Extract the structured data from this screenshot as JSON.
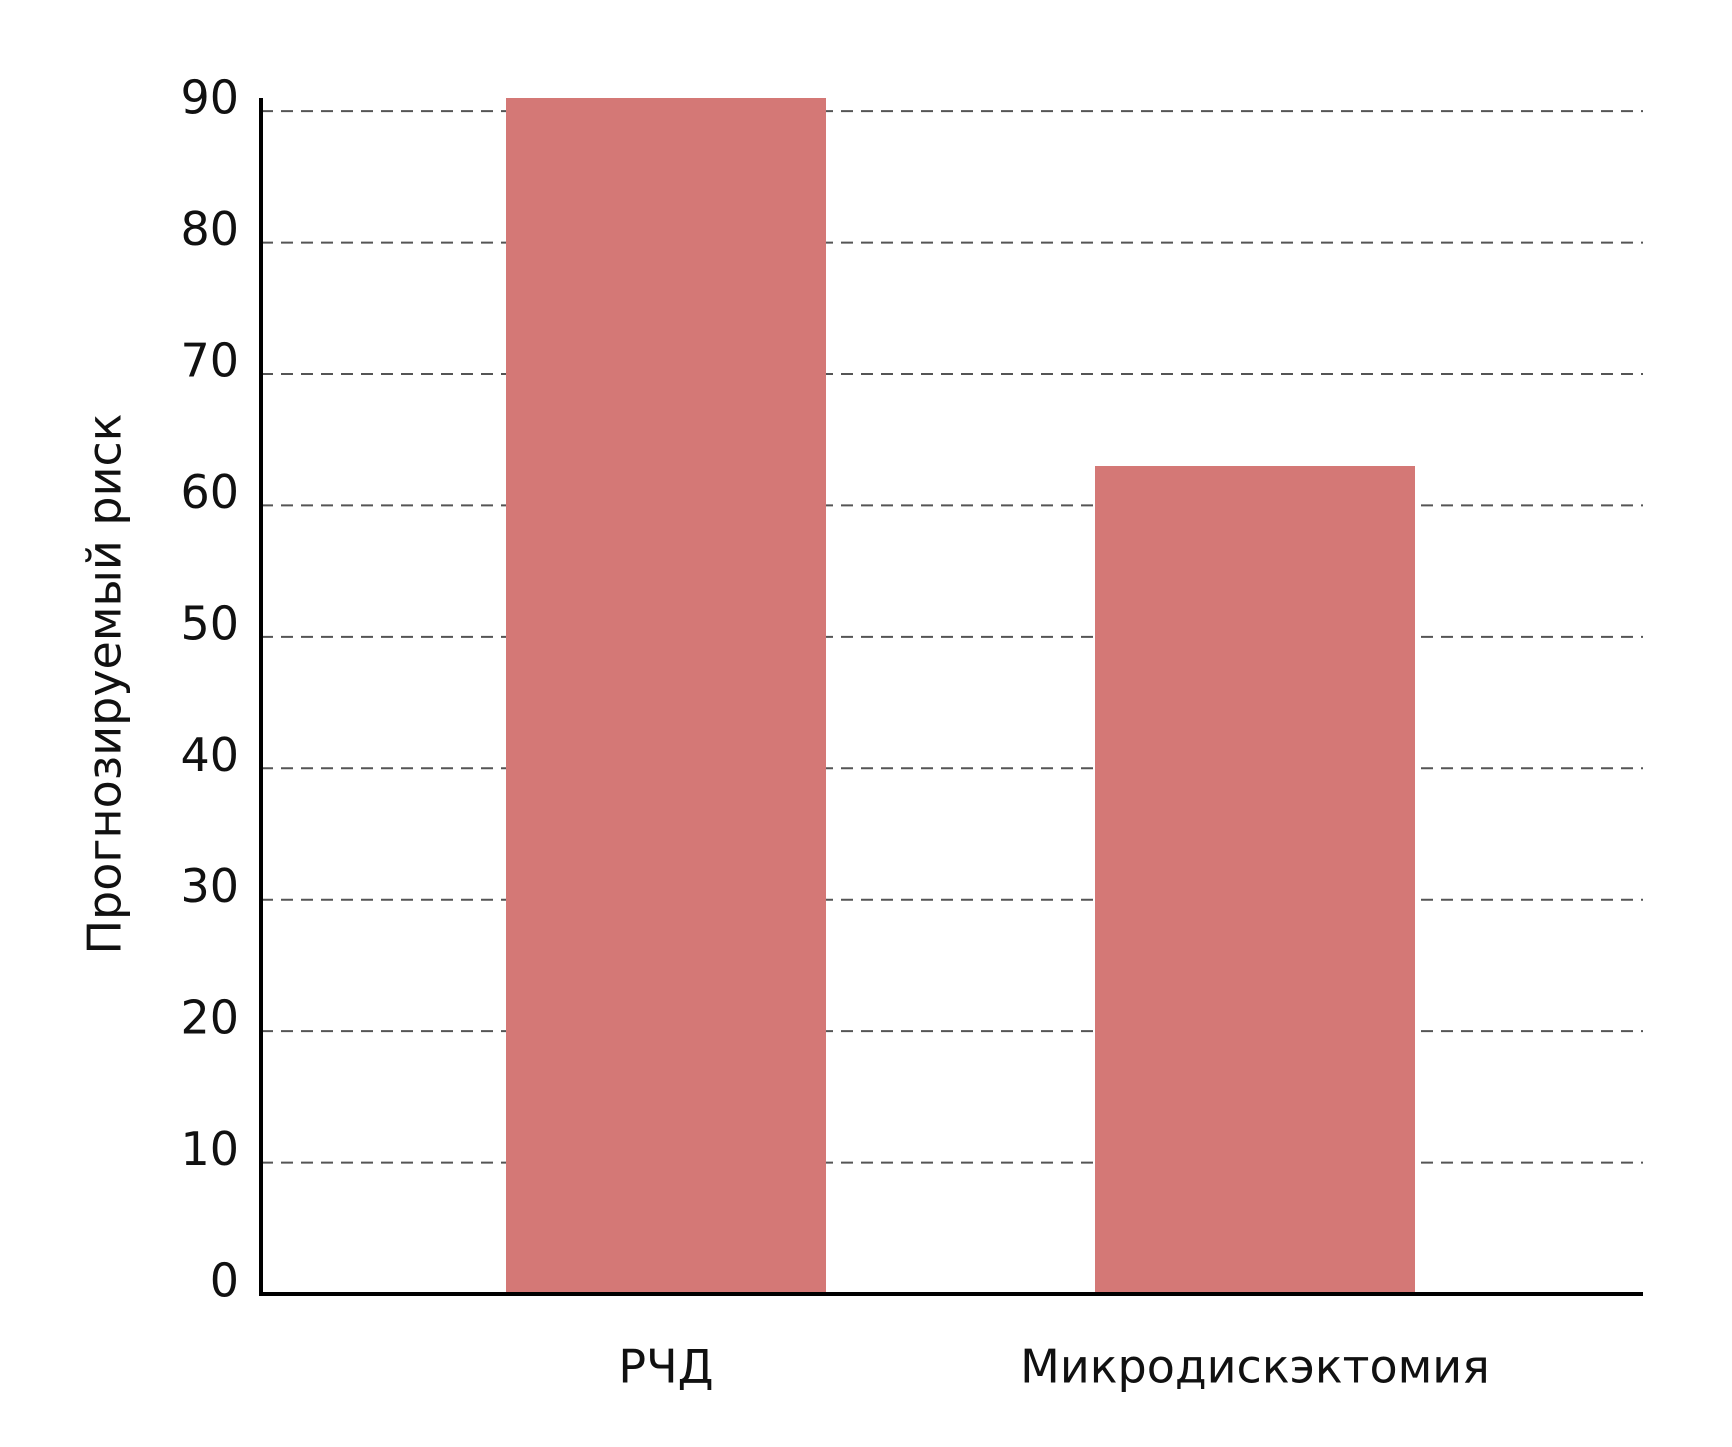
{
  "chart_data": {
    "type": "bar",
    "y_label": "Прогнозируемый риск",
    "categories": [
      "РЧД",
      "Микродискэктомия"
    ],
    "values": [
      91,
      63
    ],
    "color": "#d47876",
    "ylim": [
      0,
      91
    ],
    "yticks": [
      0,
      10,
      20,
      30,
      40,
      50,
      60,
      70,
      80,
      90
    ],
    "grid": true
  }
}
